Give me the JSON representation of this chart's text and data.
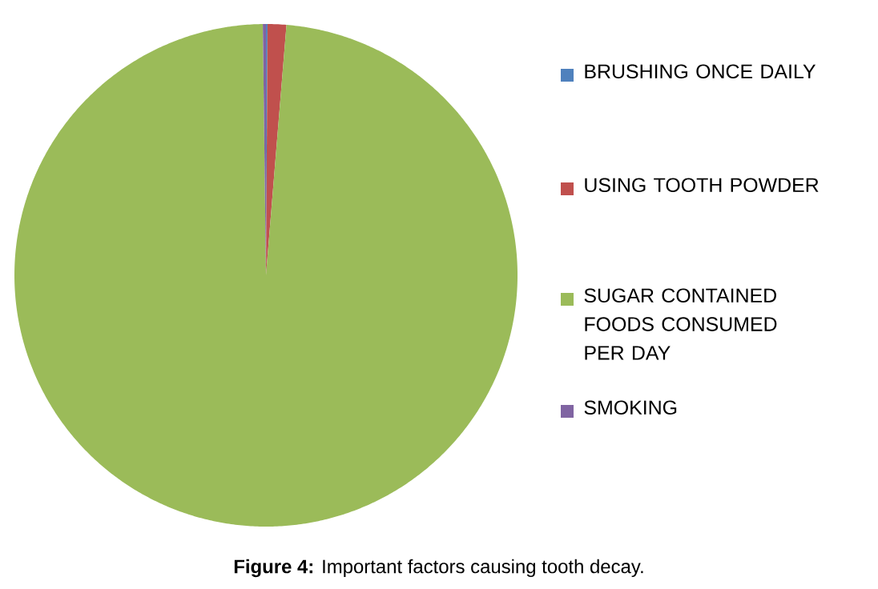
{
  "chart_data": {
    "type": "pie",
    "categories": [
      "BRUSHING ONCE DAILY",
      "USING TOOTH POWDER",
      "SUGAR CONTAINED FOODS CONSUMED PER DAY",
      "SMOKING"
    ],
    "values": [
      0.1,
      1.2,
      98.5,
      0.2
    ],
    "colors": [
      "#4f81bd",
      "#c0504d",
      "#9bbb59",
      "#8064a2"
    ],
    "legend": "right",
    "annotations": [
      "**Figure 4:** Important factors causing tooth decay."
    ]
  }
}
